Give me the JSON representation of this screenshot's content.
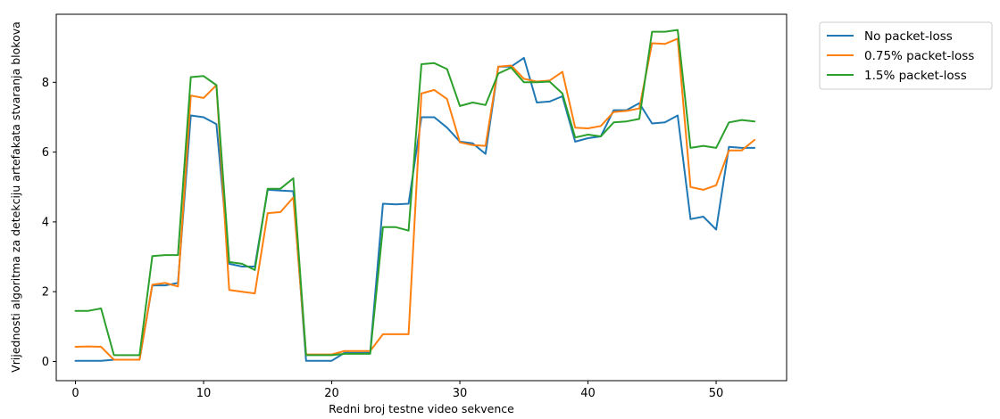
{
  "chart_data": {
    "type": "line",
    "title": "",
    "xlabel": "Redni broj testne video sekvence",
    "ylabel": "Vrijednosti algoritma za detekciju artefakata stvaranja blokova",
    "xlim": [
      -1.5,
      55.5
    ],
    "ylim": [
      -0.55,
      9.95
    ],
    "xticks": [
      0,
      10,
      20,
      30,
      40,
      50
    ],
    "yticks": [
      0,
      2,
      4,
      6,
      8
    ],
    "grid": false,
    "legend_position": "outside-top-right",
    "x": [
      0,
      1,
      2,
      3,
      4,
      5,
      6,
      7,
      8,
      9,
      10,
      11,
      12,
      13,
      14,
      15,
      16,
      17,
      18,
      19,
      20,
      21,
      22,
      23,
      24,
      25,
      26,
      27,
      28,
      29,
      30,
      31,
      32,
      33,
      34,
      35,
      36,
      37,
      38,
      39,
      40,
      41,
      42,
      43,
      44,
      45,
      46,
      47,
      48,
      49,
      50,
      51,
      52,
      53
    ],
    "series": [
      {
        "name": "No packet-loss",
        "color": "#1f77b4",
        "values": [
          0.02,
          0.02,
          0.02,
          0.05,
          0.05,
          0.05,
          2.18,
          2.18,
          2.25,
          7.05,
          7.0,
          6.8,
          2.8,
          2.72,
          2.72,
          4.92,
          4.9,
          4.88,
          0.02,
          0.02,
          0.02,
          0.25,
          0.25,
          0.25,
          4.52,
          4.5,
          4.52,
          7.0,
          7.0,
          6.7,
          6.3,
          6.25,
          5.95,
          8.45,
          8.45,
          8.7,
          7.42,
          7.45,
          7.6,
          6.3,
          6.4,
          6.45,
          7.2,
          7.2,
          7.4,
          6.82,
          6.85,
          7.05,
          4.08,
          4.15,
          3.78,
          6.15,
          6.12,
          6.12
        ]
      },
      {
        "name": "0.75% packet-loss",
        "color": "#ff7f0e",
        "values": [
          0.42,
          0.43,
          0.42,
          0.05,
          0.05,
          0.05,
          2.2,
          2.25,
          2.15,
          7.62,
          7.55,
          7.92,
          2.05,
          2.0,
          1.95,
          4.25,
          4.28,
          4.7,
          0.2,
          0.2,
          0.2,
          0.3,
          0.3,
          0.3,
          0.78,
          0.78,
          0.78,
          7.68,
          7.78,
          7.52,
          6.28,
          6.2,
          6.18,
          8.45,
          8.48,
          8.1,
          8.02,
          8.05,
          8.3,
          6.7,
          6.68,
          6.75,
          7.15,
          7.18,
          7.25,
          9.12,
          9.1,
          9.25,
          5.0,
          4.92,
          5.05,
          6.05,
          6.05,
          6.35
        ]
      },
      {
        "name": "1.5% packet-loss",
        "color": "#2ca02c",
        "values": [
          1.45,
          1.45,
          1.52,
          0.18,
          0.18,
          0.18,
          3.02,
          3.05,
          3.05,
          8.15,
          8.18,
          7.92,
          2.85,
          2.8,
          2.62,
          4.95,
          4.95,
          5.25,
          0.18,
          0.18,
          0.18,
          0.22,
          0.22,
          0.22,
          3.85,
          3.85,
          3.75,
          8.52,
          8.55,
          8.38,
          7.32,
          7.42,
          7.35,
          8.25,
          8.42,
          8.0,
          8.0,
          8.02,
          7.68,
          6.42,
          6.5,
          6.45,
          6.85,
          6.88,
          6.95,
          9.45,
          9.45,
          9.5,
          6.12,
          6.18,
          6.12,
          6.85,
          6.92,
          6.88
        ]
      }
    ]
  }
}
